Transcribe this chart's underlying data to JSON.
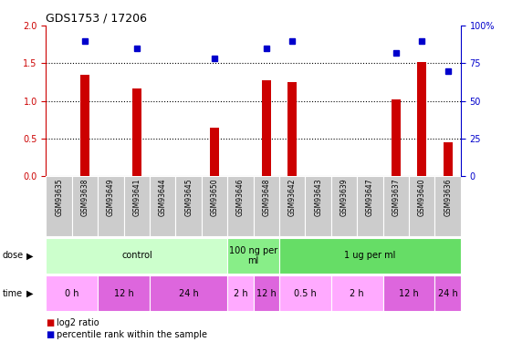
{
  "title": "GDS1753 / 17206",
  "samples": [
    "GSM93635",
    "GSM93638",
    "GSM93649",
    "GSM93641",
    "GSM93644",
    "GSM93645",
    "GSM93650",
    "GSM93646",
    "GSM93648",
    "GSM93642",
    "GSM93643",
    "GSM93639",
    "GSM93647",
    "GSM93637",
    "GSM93640",
    "GSM93636"
  ],
  "log2_ratio": [
    0,
    1.35,
    0,
    1.17,
    0,
    0,
    0.65,
    0,
    1.27,
    1.25,
    0,
    0,
    0,
    1.02,
    1.52,
    0.45
  ],
  "percentile_rank": [
    null,
    90,
    null,
    85,
    null,
    null,
    78,
    null,
    85,
    90,
    null,
    null,
    null,
    82,
    90,
    70
  ],
  "ylim_left": [
    0,
    2
  ],
  "ylim_right": [
    0,
    100
  ],
  "yticks_left": [
    0,
    0.5,
    1.0,
    1.5,
    2.0
  ],
  "yticks_right": [
    0,
    25,
    50,
    75,
    100
  ],
  "dose_groups": [
    {
      "label": "control",
      "start": 0,
      "end": 7,
      "color": "#ccffcc"
    },
    {
      "label": "100 ng per\nml",
      "start": 7,
      "end": 9,
      "color": "#88ee88"
    },
    {
      "label": "1 ug per ml",
      "start": 9,
      "end": 16,
      "color": "#66dd66"
    }
  ],
  "time_groups": [
    {
      "label": "0 h",
      "start": 0,
      "end": 2,
      "color": "#ffaaff"
    },
    {
      "label": "12 h",
      "start": 2,
      "end": 4,
      "color": "#dd66dd"
    },
    {
      "label": "24 h",
      "start": 4,
      "end": 7,
      "color": "#dd66dd"
    },
    {
      "label": "2 h",
      "start": 7,
      "end": 8,
      "color": "#ffaaff"
    },
    {
      "label": "12 h",
      "start": 8,
      "end": 9,
      "color": "#dd66dd"
    },
    {
      "label": "0.5 h",
      "start": 9,
      "end": 11,
      "color": "#ffaaff"
    },
    {
      "label": "2 h",
      "start": 11,
      "end": 13,
      "color": "#ffaaff"
    },
    {
      "label": "12 h",
      "start": 13,
      "end": 15,
      "color": "#dd66dd"
    },
    {
      "label": "24 h",
      "start": 15,
      "end": 16,
      "color": "#dd66dd"
    }
  ],
  "bar_color": "#cc0000",
  "dot_color": "#0000cc",
  "left_axis_color": "#cc0000",
  "right_axis_color": "#0000cc",
  "legend_items": [
    {
      "label": "log2 ratio",
      "color": "#cc0000"
    },
    {
      "label": "percentile rank within the sample",
      "color": "#0000cc"
    }
  ]
}
